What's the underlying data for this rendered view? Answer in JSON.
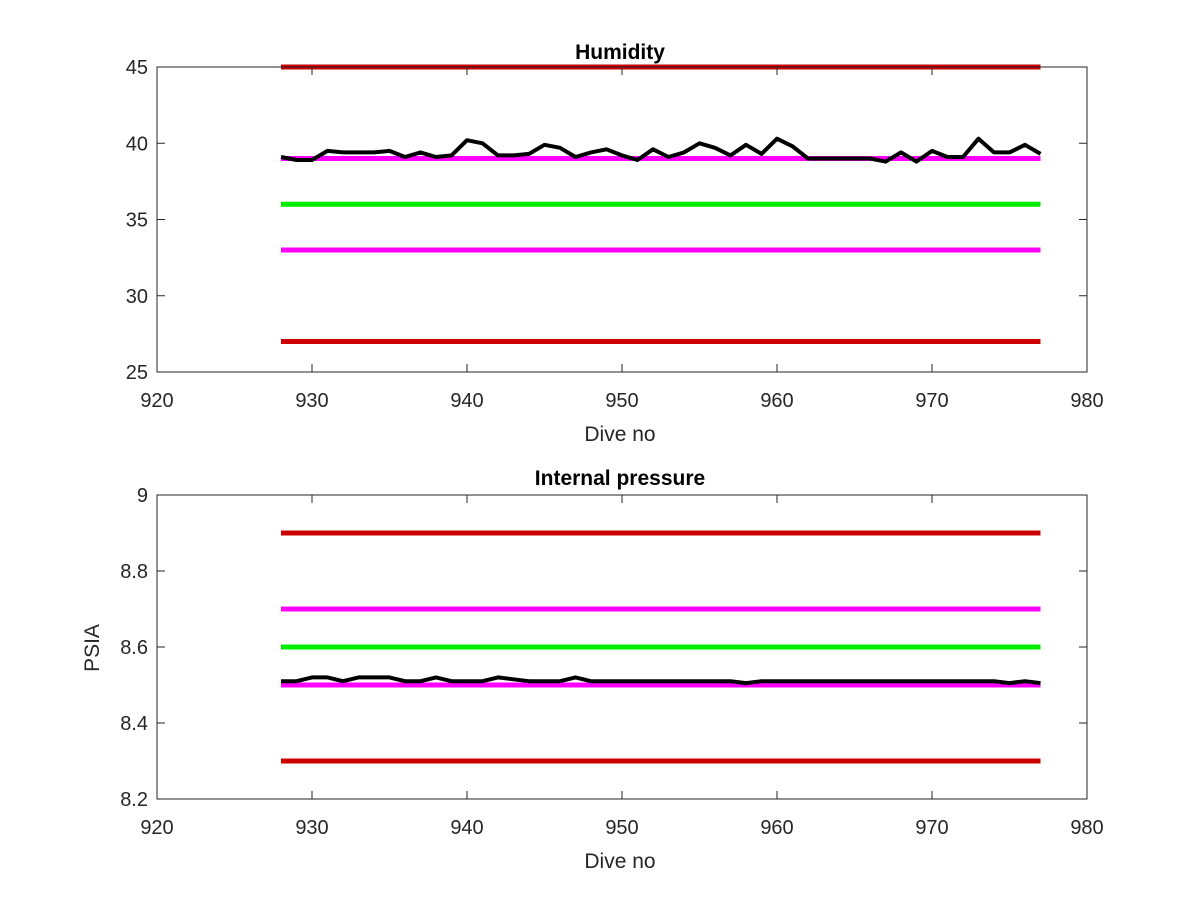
{
  "figure": {
    "background": "#ffffff"
  },
  "chart_data": [
    {
      "type": "line",
      "title": "Humidity",
      "xlabel": "Dive no",
      "ylabel": "",
      "xlim": [
        920,
        980
      ],
      "ylim": [
        25,
        45
      ],
      "xticks": [
        "920",
        "930",
        "940",
        "950",
        "960",
        "970",
        "980"
      ],
      "yticks": [
        "25",
        "30",
        "35",
        "40",
        "45"
      ],
      "grid": false,
      "legend": "none",
      "series": [
        {
          "role": "upper-limit",
          "color": "#cc0000",
          "x": [
            928,
            977
          ],
          "y": [
            45,
            45
          ]
        },
        {
          "role": "upper-warning",
          "color": "#ff00ff",
          "x": [
            928,
            977
          ],
          "y": [
            39,
            39
          ]
        },
        {
          "role": "nominal",
          "color": "#00ee00",
          "x": [
            928,
            977
          ],
          "y": [
            36,
            36
          ]
        },
        {
          "role": "lower-warning",
          "color": "#ff00ff",
          "x": [
            928,
            977
          ],
          "y": [
            33,
            33
          ]
        },
        {
          "role": "lower-limit",
          "color": "#cc0000",
          "x": [
            928,
            977
          ],
          "y": [
            27,
            27
          ]
        },
        {
          "role": "measured",
          "color": "#000000",
          "x": [
            928,
            929,
            930,
            931,
            932,
            933,
            934,
            935,
            936,
            937,
            938,
            939,
            940,
            941,
            942,
            943,
            944,
            945,
            946,
            947,
            948,
            949,
            950,
            951,
            952,
            953,
            954,
            955,
            956,
            957,
            958,
            959,
            960,
            961,
            962,
            963,
            964,
            965,
            966,
            967,
            968,
            969,
            970,
            971,
            972,
            973,
            974,
            975,
            976,
            977
          ],
          "y": [
            39.1,
            38.9,
            38.9,
            39.5,
            39.4,
            39.4,
            39.4,
            39.5,
            39.1,
            39.4,
            39.1,
            39.2,
            40.2,
            40.0,
            39.2,
            39.2,
            39.3,
            39.9,
            39.7,
            39.1,
            39.4,
            39.6,
            39.2,
            38.9,
            39.6,
            39.1,
            39.4,
            40.0,
            39.7,
            39.2,
            39.9,
            39.3,
            40.3,
            39.8,
            39.0,
            39.0,
            39.0,
            39.0,
            39.0,
            38.8,
            39.4,
            38.8,
            39.5,
            39.1,
            39.1,
            40.3,
            39.4,
            39.4,
            39.9,
            39.3
          ]
        }
      ]
    },
    {
      "type": "line",
      "title": "Internal pressure",
      "xlabel": "Dive no",
      "ylabel": "PSIA",
      "xlim": [
        920,
        980
      ],
      "ylim": [
        8.2,
        9.0
      ],
      "xticks": [
        "920",
        "930",
        "940",
        "950",
        "960",
        "970",
        "980"
      ],
      "yticks": [
        "8.2",
        "8.4",
        "8.6",
        "8.8",
        "9"
      ],
      "grid": false,
      "legend": "none",
      "series": [
        {
          "role": "upper-limit",
          "color": "#cc0000",
          "x": [
            928,
            977
          ],
          "y": [
            8.9,
            8.9
          ]
        },
        {
          "role": "upper-warning",
          "color": "#ff00ff",
          "x": [
            928,
            977
          ],
          "y": [
            8.7,
            8.7
          ]
        },
        {
          "role": "nominal",
          "color": "#00ee00",
          "x": [
            928,
            977
          ],
          "y": [
            8.6,
            8.6
          ]
        },
        {
          "role": "lower-warning",
          "color": "#ff00ff",
          "x": [
            928,
            977
          ],
          "y": [
            8.5,
            8.5
          ]
        },
        {
          "role": "lower-limit",
          "color": "#cc0000",
          "x": [
            928,
            977
          ],
          "y": [
            8.3,
            8.3
          ]
        },
        {
          "role": "measured",
          "color": "#000000",
          "x": [
            928,
            929,
            930,
            931,
            932,
            933,
            934,
            935,
            936,
            937,
            938,
            939,
            940,
            941,
            942,
            943,
            944,
            945,
            946,
            947,
            948,
            949,
            950,
            951,
            952,
            953,
            954,
            955,
            956,
            957,
            958,
            959,
            960,
            961,
            962,
            963,
            964,
            965,
            966,
            967,
            968,
            969,
            970,
            971,
            972,
            973,
            974,
            975,
            976,
            977
          ],
          "y": [
            8.51,
            8.51,
            8.52,
            8.52,
            8.51,
            8.52,
            8.52,
            8.52,
            8.51,
            8.51,
            8.52,
            8.51,
            8.51,
            8.51,
            8.52,
            8.515,
            8.51,
            8.51,
            8.51,
            8.52,
            8.51,
            8.51,
            8.51,
            8.51,
            8.51,
            8.51,
            8.51,
            8.51,
            8.51,
            8.51,
            8.505,
            8.51,
            8.51,
            8.51,
            8.51,
            8.51,
            8.51,
            8.51,
            8.51,
            8.51,
            8.51,
            8.51,
            8.51,
            8.51,
            8.51,
            8.51,
            8.51,
            8.505,
            8.51,
            8.505
          ]
        }
      ]
    }
  ]
}
